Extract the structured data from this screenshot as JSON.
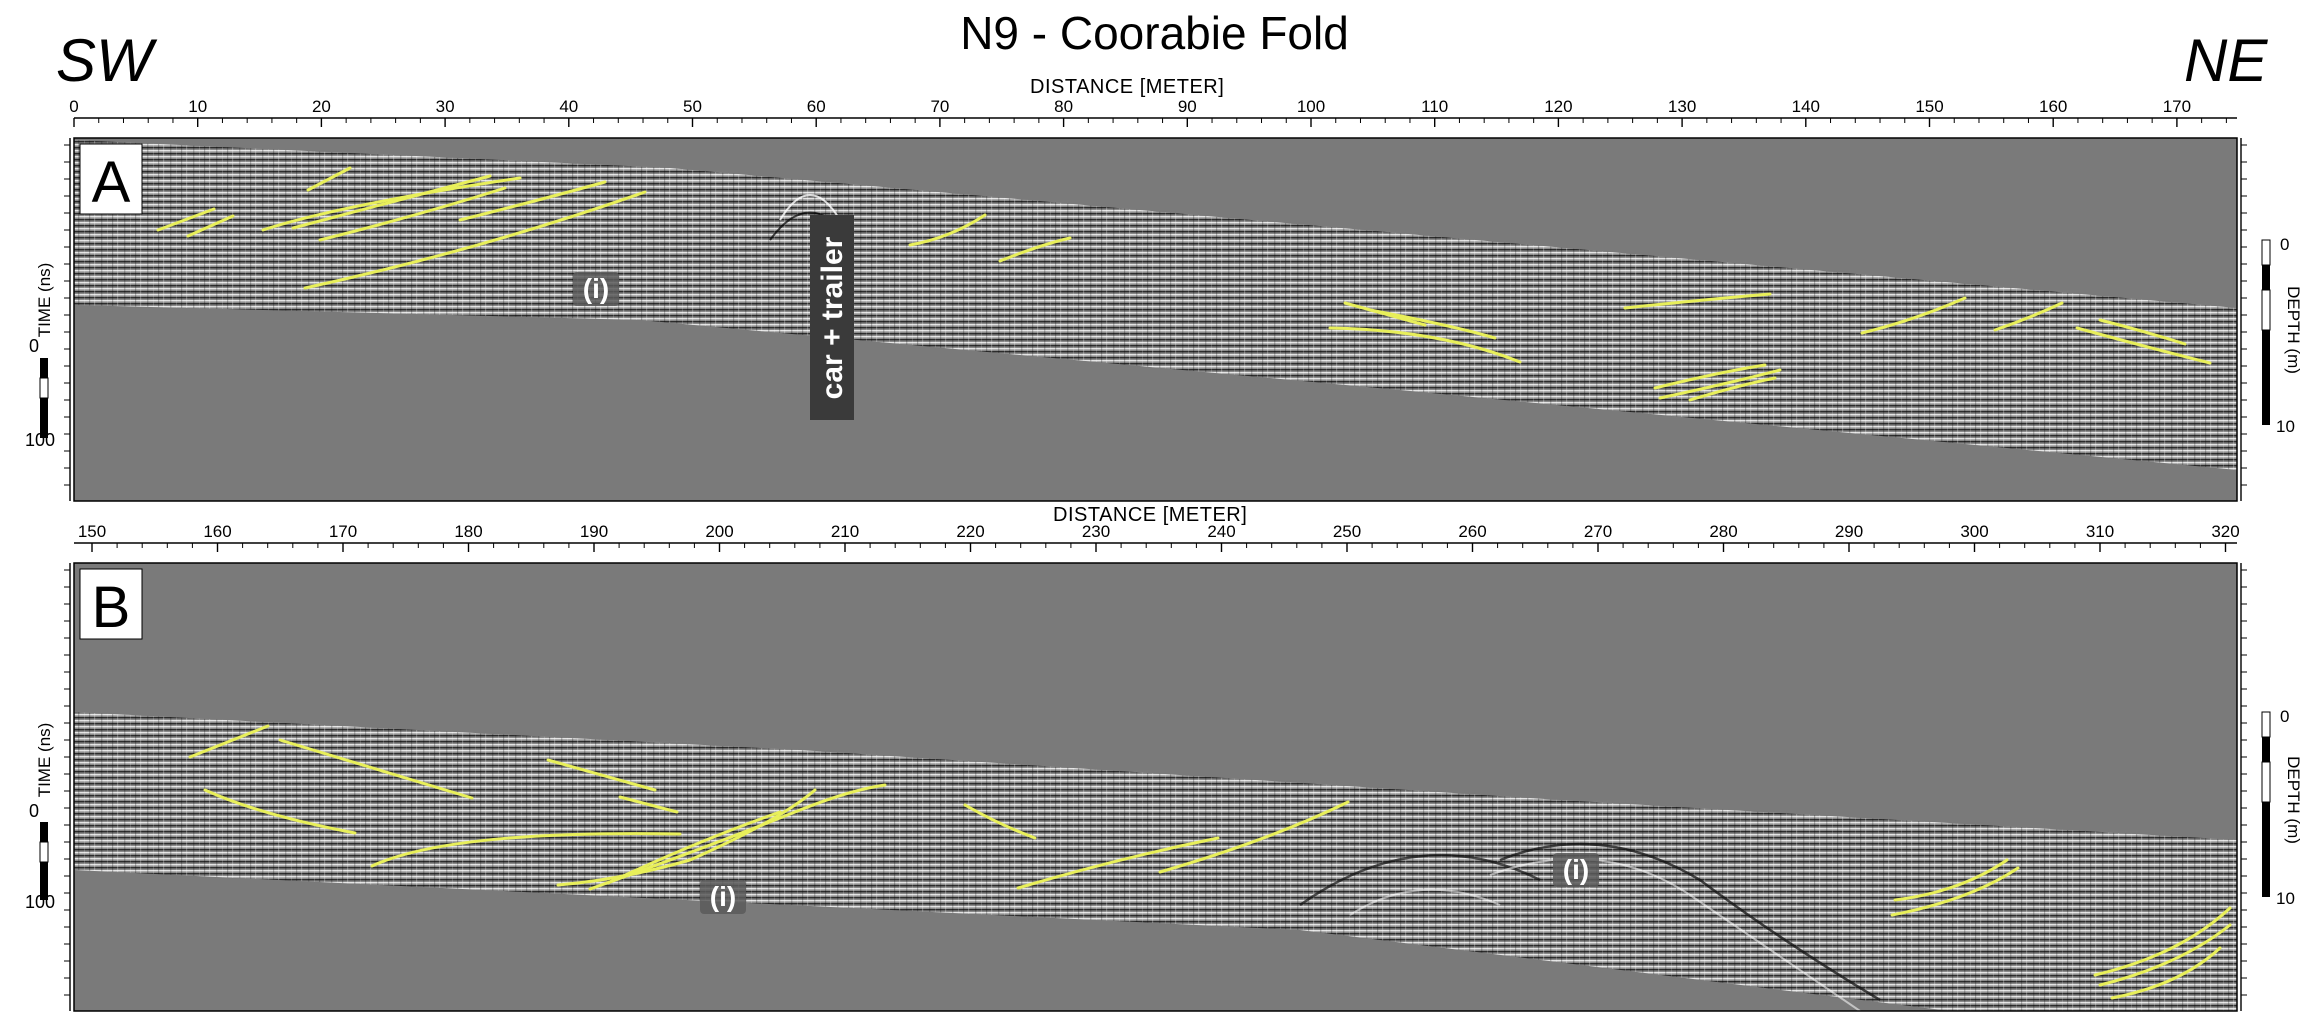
{
  "title": "N9 - Coorabie Fold",
  "direction": {
    "left": "SW",
    "right": "NE"
  },
  "panels": [
    {
      "label": "A",
      "distance_title": "DISTANCE [METER]",
      "distance_ticks": [
        "0",
        "10",
        "20",
        "30",
        "40",
        "50",
        "60",
        "70",
        "80",
        "90",
        "100",
        "110",
        "120",
        "130",
        "140",
        "150",
        "160",
        "170"
      ],
      "time_axis_label": "TIME (ns)",
      "time_ticks": [
        "0",
        "100"
      ],
      "depth_axis_label": "DEPTH (m)",
      "depth_ticks": [
        "0",
        "10"
      ],
      "annotations": {
        "car": "car + trailer",
        "interp": "(i)"
      }
    },
    {
      "label": "B",
      "distance_title": "DISTANCE [METER]",
      "distance_ticks": [
        "150",
        "160",
        "170",
        "180",
        "190",
        "200",
        "210",
        "220",
        "230",
        "240",
        "250",
        "260",
        "270",
        "280",
        "290",
        "300",
        "310",
        "320"
      ],
      "time_axis_label": "TIME (ns)",
      "time_ticks": [
        "0",
        "100"
      ],
      "depth_axis_label": "DEPTH (m)",
      "depth_ticks": [
        "0",
        "10"
      ],
      "annotations": {
        "interp_1": "(i)",
        "interp_2": "(i)"
      }
    }
  ],
  "colors": {
    "background_gray": "#7a7a7a",
    "reflector_yellow": "#e8ef5a",
    "frame": "#000000"
  }
}
